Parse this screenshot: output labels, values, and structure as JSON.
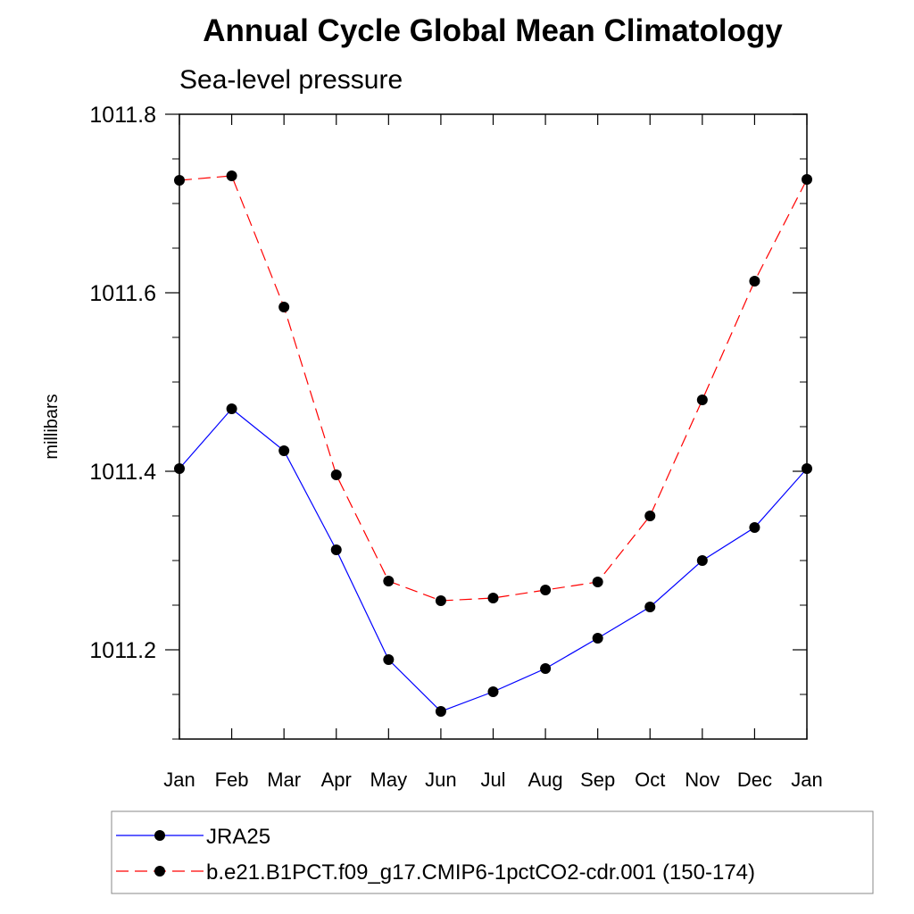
{
  "chart_data": {
    "type": "line",
    "title": "Annual Cycle Global Mean Climatology",
    "subtitle": "Sea-level pressure",
    "xlabel": "",
    "ylabel": "millibars",
    "categories": [
      "Jan",
      "Feb",
      "Mar",
      "Apr",
      "May",
      "Jun",
      "Jul",
      "Aug",
      "Sep",
      "Oct",
      "Nov",
      "Dec",
      "Jan"
    ],
    "ylim": [
      1011.1,
      1011.8
    ],
    "yticks": [
      1011.2,
      1011.4,
      1011.6,
      1011.8
    ],
    "ytick_labels": [
      "1011.2",
      "1011.4",
      "1011.6",
      "1011.8"
    ],
    "yminor_step": 0.05,
    "grid": false,
    "legend_position": "bottom",
    "series": [
      {
        "name": "JRA25",
        "color": "#0000ff",
        "dashed": false,
        "values": [
          1011.403,
          1011.47,
          1011.423,
          1011.312,
          1011.189,
          1011.131,
          1011.153,
          1011.179,
          1011.213,
          1011.248,
          1011.3,
          1011.337,
          1011.403
        ]
      },
      {
        "name": "b.e21.B1PCT.f09_g17.CMIP6-1pctCO2-cdr.001 (150-174)",
        "color": "#ff0000",
        "dashed": true,
        "values": [
          1011.726,
          1011.731,
          1011.584,
          1011.396,
          1011.277,
          1011.255,
          1011.258,
          1011.267,
          1011.276,
          1011.35,
          1011.48,
          1011.613,
          1011.727
        ]
      }
    ]
  }
}
